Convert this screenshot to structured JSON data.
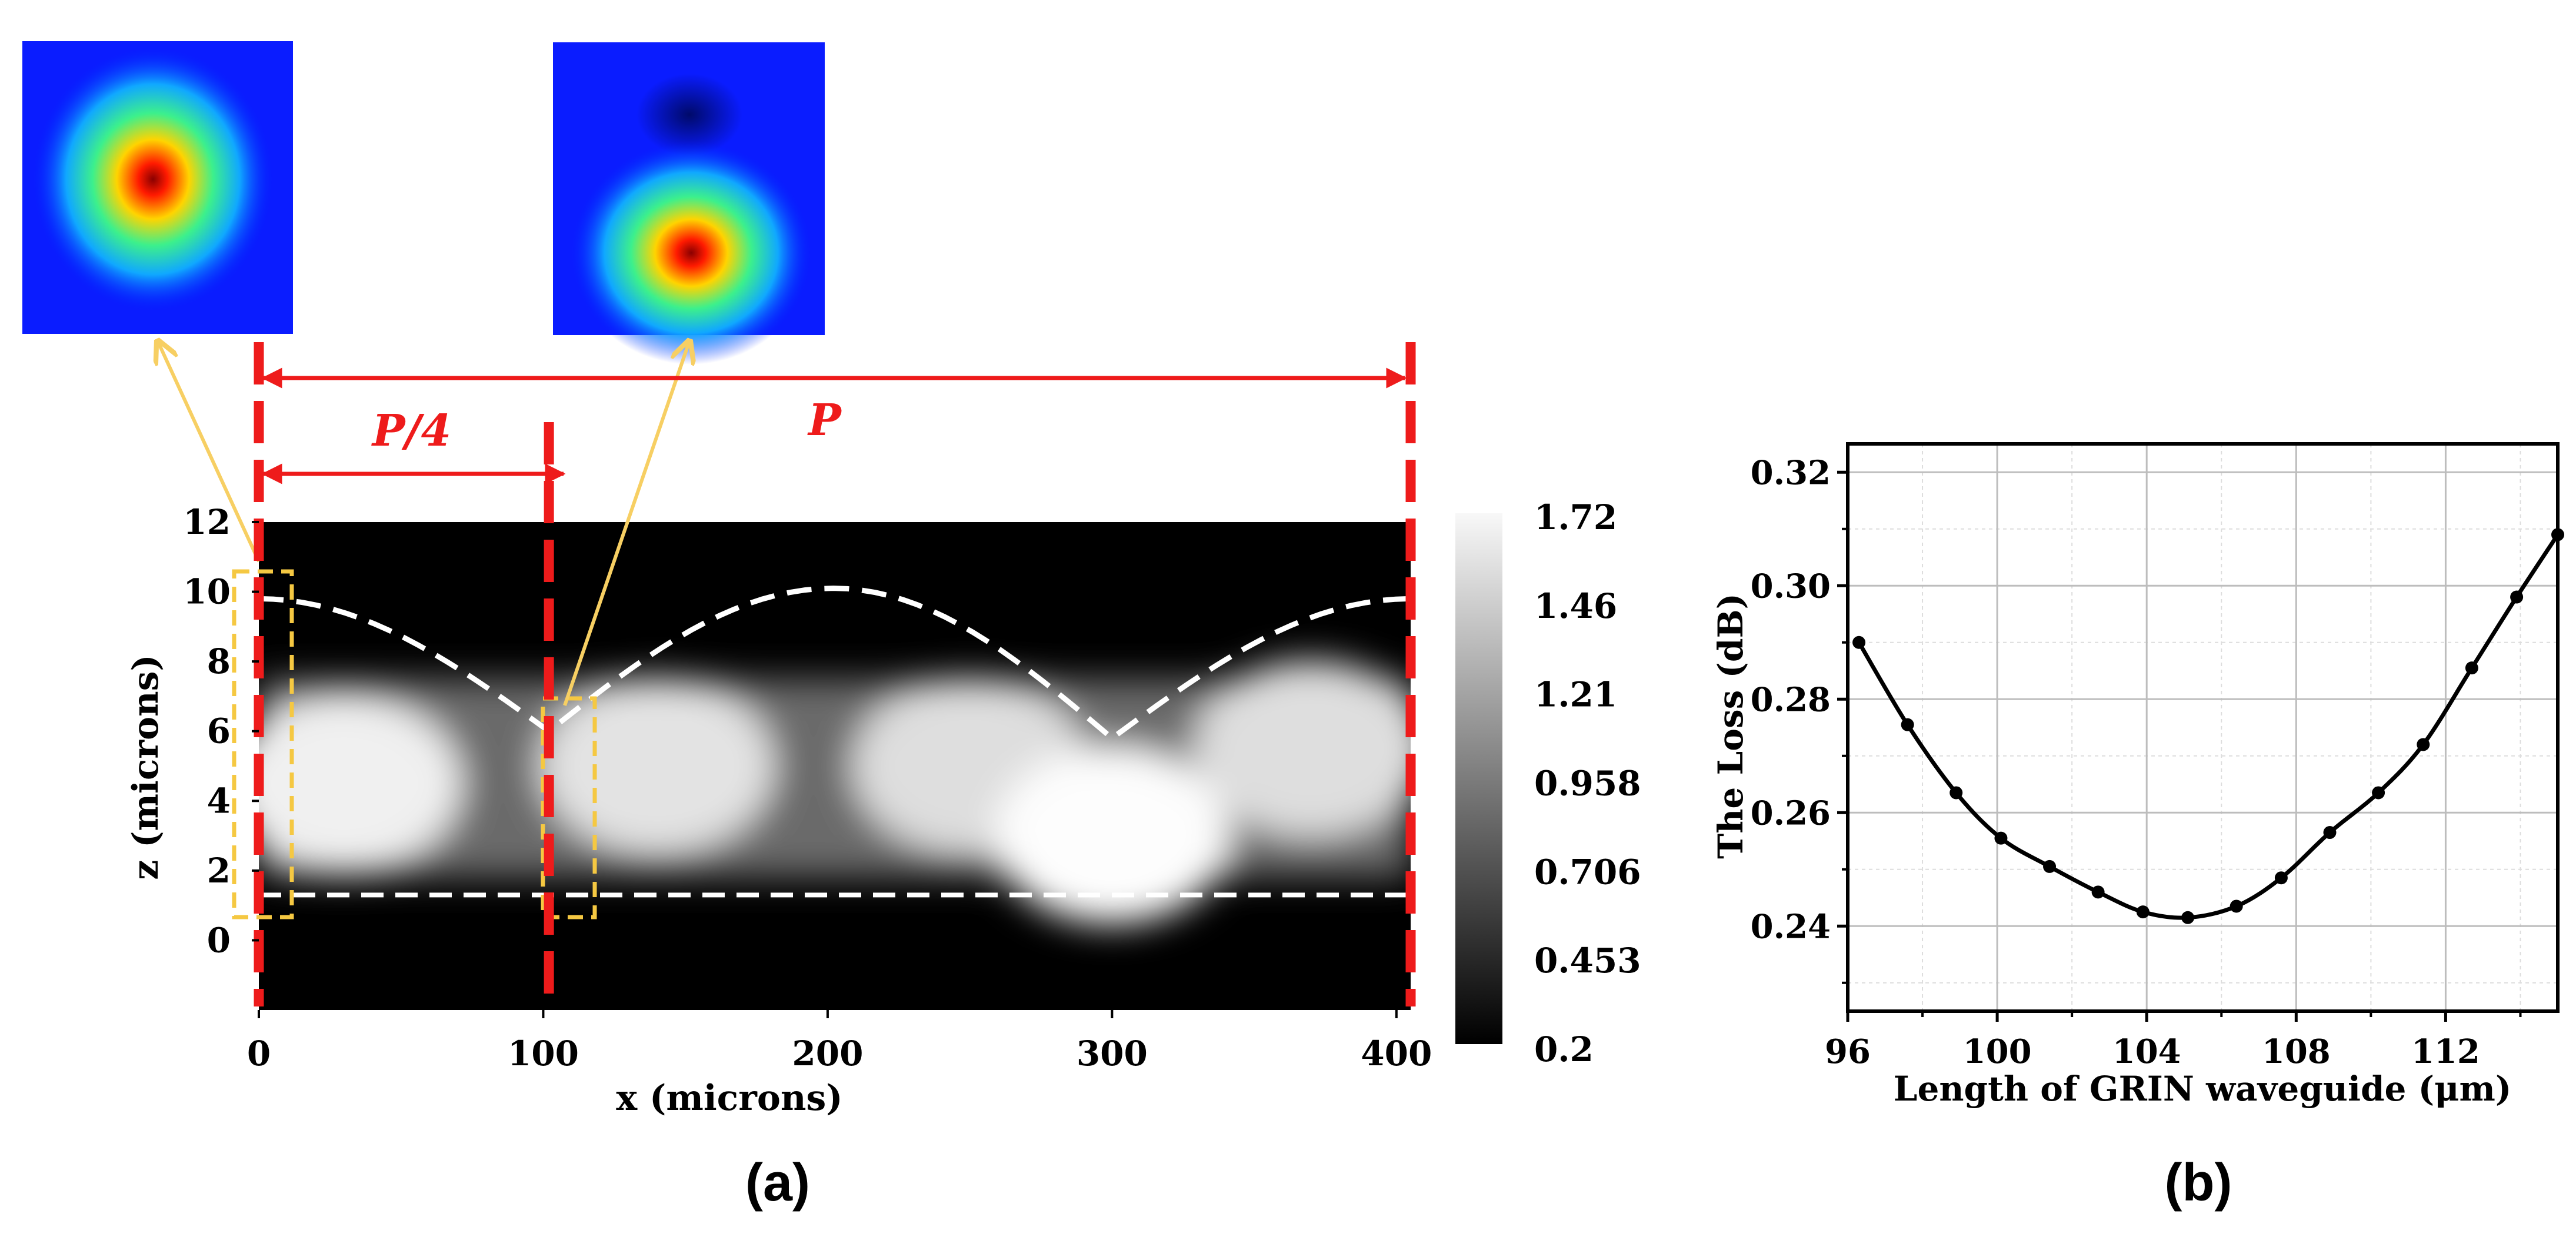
{
  "colors": {
    "marker_red": "#ee1b1b",
    "box_yellow": "#f5c842",
    "arrow_yellow": "#f7cf63",
    "path_white": "#ffffff",
    "curve_black": "#000000",
    "grid": "#cccccc"
  },
  "annotations": {
    "quarter_period": "P/4",
    "period": "P"
  },
  "panel_labels": {
    "a": "(a)",
    "b": "(b)"
  },
  "chart_data": [
    {
      "type": "heatmap",
      "panel": "(a)",
      "title": "",
      "xlabel": "x (microns)",
      "ylabel": "z (microns)",
      "xlim": [
        0,
        405
      ],
      "ylim": [
        -2,
        12
      ],
      "x_ticks": [
        "0",
        "100",
        "200",
        "300",
        "400"
      ],
      "x_tick_values": [
        0,
        100,
        200,
        300,
        400
      ],
      "y_ticks": [
        "12",
        "10",
        "8",
        "6",
        "4",
        "2",
        "0"
      ],
      "y_tick_values": [
        12,
        10,
        8,
        6,
        4,
        2,
        0
      ],
      "colorbar": {
        "labels": [
          "1.72",
          "1.46",
          "1.21",
          "0.958",
          "0.706",
          "0.453",
          "0.2"
        ],
        "range": [
          0.2,
          1.72
        ],
        "colormap": "gray"
      },
      "guide_lines": [
        {
          "kind": "dashed-arc",
          "points_x": [
            0,
            102,
            202,
            300,
            405
          ],
          "points_z": [
            9.8,
            6.0,
            10.1,
            5.8,
            9.8
          ]
        },
        {
          "kind": "dashed-line",
          "z": 1.3
        }
      ],
      "markers_x": [
        0,
        102,
        405
      ],
      "intensity_blobs": [
        {
          "x": 30,
          "z": 4.5,
          "level": 1.55
        },
        {
          "x": 140,
          "z": 5.0,
          "level": 1.4
        },
        {
          "x": 250,
          "z": 5.0,
          "level": 1.35
        },
        {
          "x": 300,
          "z": 3.0,
          "level": 1.7
        },
        {
          "x": 370,
          "z": 5.5,
          "level": 1.35
        }
      ]
    },
    {
      "type": "line",
      "panel": "(b)",
      "title": "",
      "xlabel": "Length of GRIN waveguide  (μm)",
      "ylabel": "The Loss (dB)",
      "xlim": [
        96,
        115
      ],
      "ylim": [
        0.225,
        0.325
      ],
      "x_ticks": [
        "96",
        "100",
        "104",
        "108",
        "112"
      ],
      "x_tick_values": [
        96,
        100,
        104,
        108,
        112
      ],
      "y_ticks": [
        "0.32",
        "0.30",
        "0.28",
        "0.26",
        "0.24"
      ],
      "y_tick_values": [
        0.32,
        0.3,
        0.28,
        0.26,
        0.24
      ],
      "grid": true,
      "series": [
        {
          "name": "Loss",
          "x": [
            96.3,
            97.6,
            98.9,
            100.1,
            101.4,
            102.7,
            103.9,
            105.1,
            106.4,
            107.6,
            108.9,
            110.2,
            111.4,
            112.7,
            113.9,
            115.0
          ],
          "values": [
            0.29,
            0.2755,
            0.2635,
            0.2555,
            0.2505,
            0.246,
            0.2425,
            0.2415,
            0.2435,
            0.2485,
            0.2565,
            0.2635,
            0.272,
            0.2855,
            0.298,
            0.309
          ]
        }
      ]
    }
  ]
}
